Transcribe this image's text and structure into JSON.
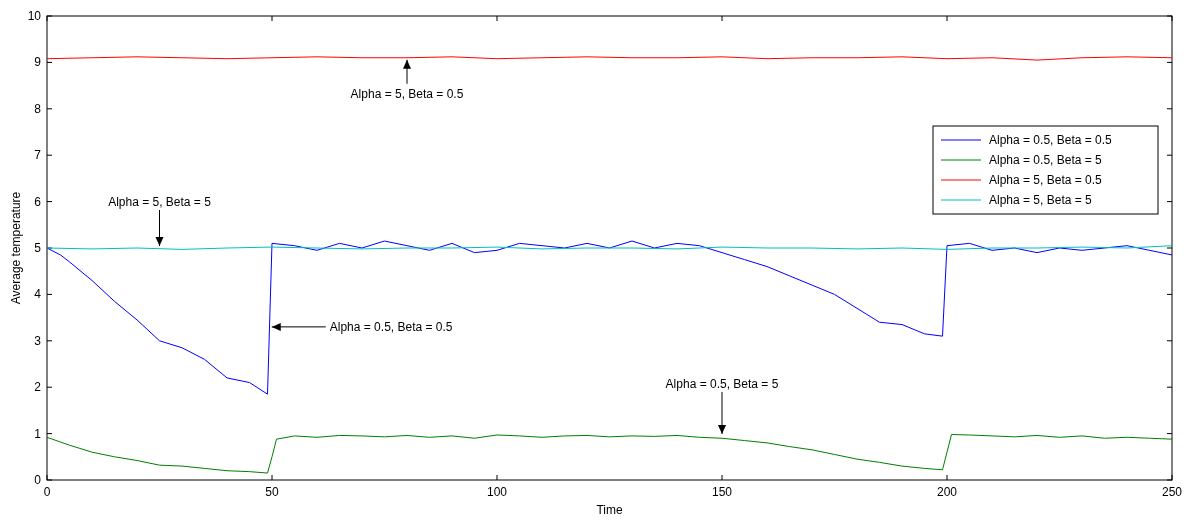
{
  "chart_data": {
    "type": "line",
    "xlabel": "Time",
    "ylabel": "Average temperature",
    "xlim": [
      0,
      250
    ],
    "xticks": [
      0,
      50,
      100,
      150,
      200,
      250
    ],
    "ylim": [
      0,
      10
    ],
    "yticks": [
      0,
      1,
      2,
      3,
      4,
      5,
      6,
      7,
      8,
      9,
      10
    ],
    "grid": false,
    "legend": "top right",
    "marker": "none",
    "line_style": "solid",
    "series": [
      {
        "name": "Alpha = 0.5, Beta = 0.5",
        "color": "#0000ff",
        "x": [
          0,
          3,
          5,
          10,
          15,
          20,
          25,
          30,
          35,
          40,
          45,
          49,
          50,
          55,
          60,
          65,
          70,
          75,
          80,
          85,
          90,
          95,
          100,
          105,
          110,
          115,
          120,
          125,
          130,
          135,
          140,
          145,
          150,
          155,
          160,
          165,
          170,
          175,
          180,
          185,
          190,
          195,
          199,
          200,
          205,
          210,
          215,
          220,
          225,
          230,
          235,
          240,
          245,
          250
        ],
        "values": [
          5.0,
          4.85,
          4.7,
          4.3,
          3.85,
          3.45,
          3.0,
          2.85,
          2.6,
          2.2,
          2.1,
          1.85,
          5.1,
          5.05,
          4.95,
          5.1,
          5.0,
          5.15,
          5.05,
          4.95,
          5.1,
          4.9,
          4.95,
          5.1,
          5.05,
          5.0,
          5.1,
          5.0,
          5.15,
          5.0,
          5.1,
          5.05,
          4.9,
          4.75,
          4.6,
          4.4,
          4.2,
          4.0,
          3.7,
          3.4,
          3.35,
          3.15,
          3.1,
          5.05,
          5.1,
          4.95,
          5.0,
          4.9,
          5.0,
          4.95,
          5.0,
          5.05,
          4.95,
          4.85
        ]
      },
      {
        "name": "Alpha = 0.5, Beta = 5",
        "color": "#008000",
        "x": [
          0,
          5,
          10,
          15,
          20,
          25,
          30,
          35,
          40,
          45,
          49,
          50,
          51,
          55,
          60,
          65,
          70,
          75,
          80,
          85,
          90,
          95,
          100,
          105,
          110,
          115,
          120,
          125,
          130,
          135,
          140,
          145,
          150,
          155,
          160,
          165,
          170,
          175,
          180,
          185,
          190,
          195,
          199,
          200,
          201,
          205,
          210,
          215,
          220,
          225,
          230,
          235,
          240,
          245,
          250
        ],
        "values": [
          0.92,
          0.75,
          0.6,
          0.5,
          0.42,
          0.32,
          0.3,
          0.25,
          0.2,
          0.18,
          0.15,
          0.5,
          0.88,
          0.95,
          0.92,
          0.96,
          0.95,
          0.93,
          0.96,
          0.92,
          0.95,
          0.9,
          0.97,
          0.95,
          0.92,
          0.95,
          0.96,
          0.93,
          0.95,
          0.94,
          0.96,
          0.92,
          0.9,
          0.85,
          0.8,
          0.72,
          0.65,
          0.55,
          0.45,
          0.38,
          0.3,
          0.25,
          0.22,
          0.6,
          0.98,
          0.97,
          0.95,
          0.93,
          0.96,
          0.92,
          0.95,
          0.9,
          0.92,
          0.9,
          0.88
        ]
      },
      {
        "name": "Alpha = 5, Beta = 0.5",
        "color": "#ff0000",
        "x": [
          0,
          10,
          20,
          30,
          40,
          50,
          60,
          70,
          80,
          90,
          100,
          110,
          120,
          130,
          140,
          150,
          160,
          170,
          180,
          190,
          200,
          210,
          220,
          230,
          240,
          250
        ],
        "values": [
          9.08,
          9.1,
          9.12,
          9.1,
          9.08,
          9.1,
          9.12,
          9.1,
          9.1,
          9.12,
          9.08,
          9.1,
          9.12,
          9.1,
          9.1,
          9.12,
          9.08,
          9.1,
          9.1,
          9.12,
          9.08,
          9.1,
          9.05,
          9.1,
          9.12,
          9.1
        ]
      },
      {
        "name": "Alpha = 5, Beta = 5",
        "color": "#00bfbf",
        "x": [
          0,
          10,
          20,
          30,
          40,
          50,
          60,
          70,
          80,
          90,
          100,
          110,
          120,
          130,
          140,
          150,
          160,
          170,
          180,
          190,
          200,
          210,
          220,
          230,
          240,
          250
        ],
        "values": [
          5.0,
          4.98,
          5.0,
          4.97,
          5.0,
          5.02,
          5.0,
          4.98,
          5.0,
          5.0,
          5.02,
          4.98,
          5.0,
          5.0,
          4.98,
          5.02,
          5.0,
          5.0,
          4.98,
          5.0,
          4.97,
          5.0,
          5.0,
          5.02,
          5.0,
          5.05
        ]
      }
    ],
    "annotations": [
      {
        "text": "Alpha = 5, Beta = 0.5",
        "x": 80,
        "y": 9.1
      },
      {
        "text": "Alpha = 5, Beta = 5",
        "x": 25,
        "y": 5.0
      },
      {
        "text": "Alpha = 0.5, Beta = 0.5",
        "x": 49.5,
        "y": 3.3
      },
      {
        "text": "Alpha = 0.5, Beta = 5",
        "x": 150,
        "y": 0.95
      }
    ]
  }
}
